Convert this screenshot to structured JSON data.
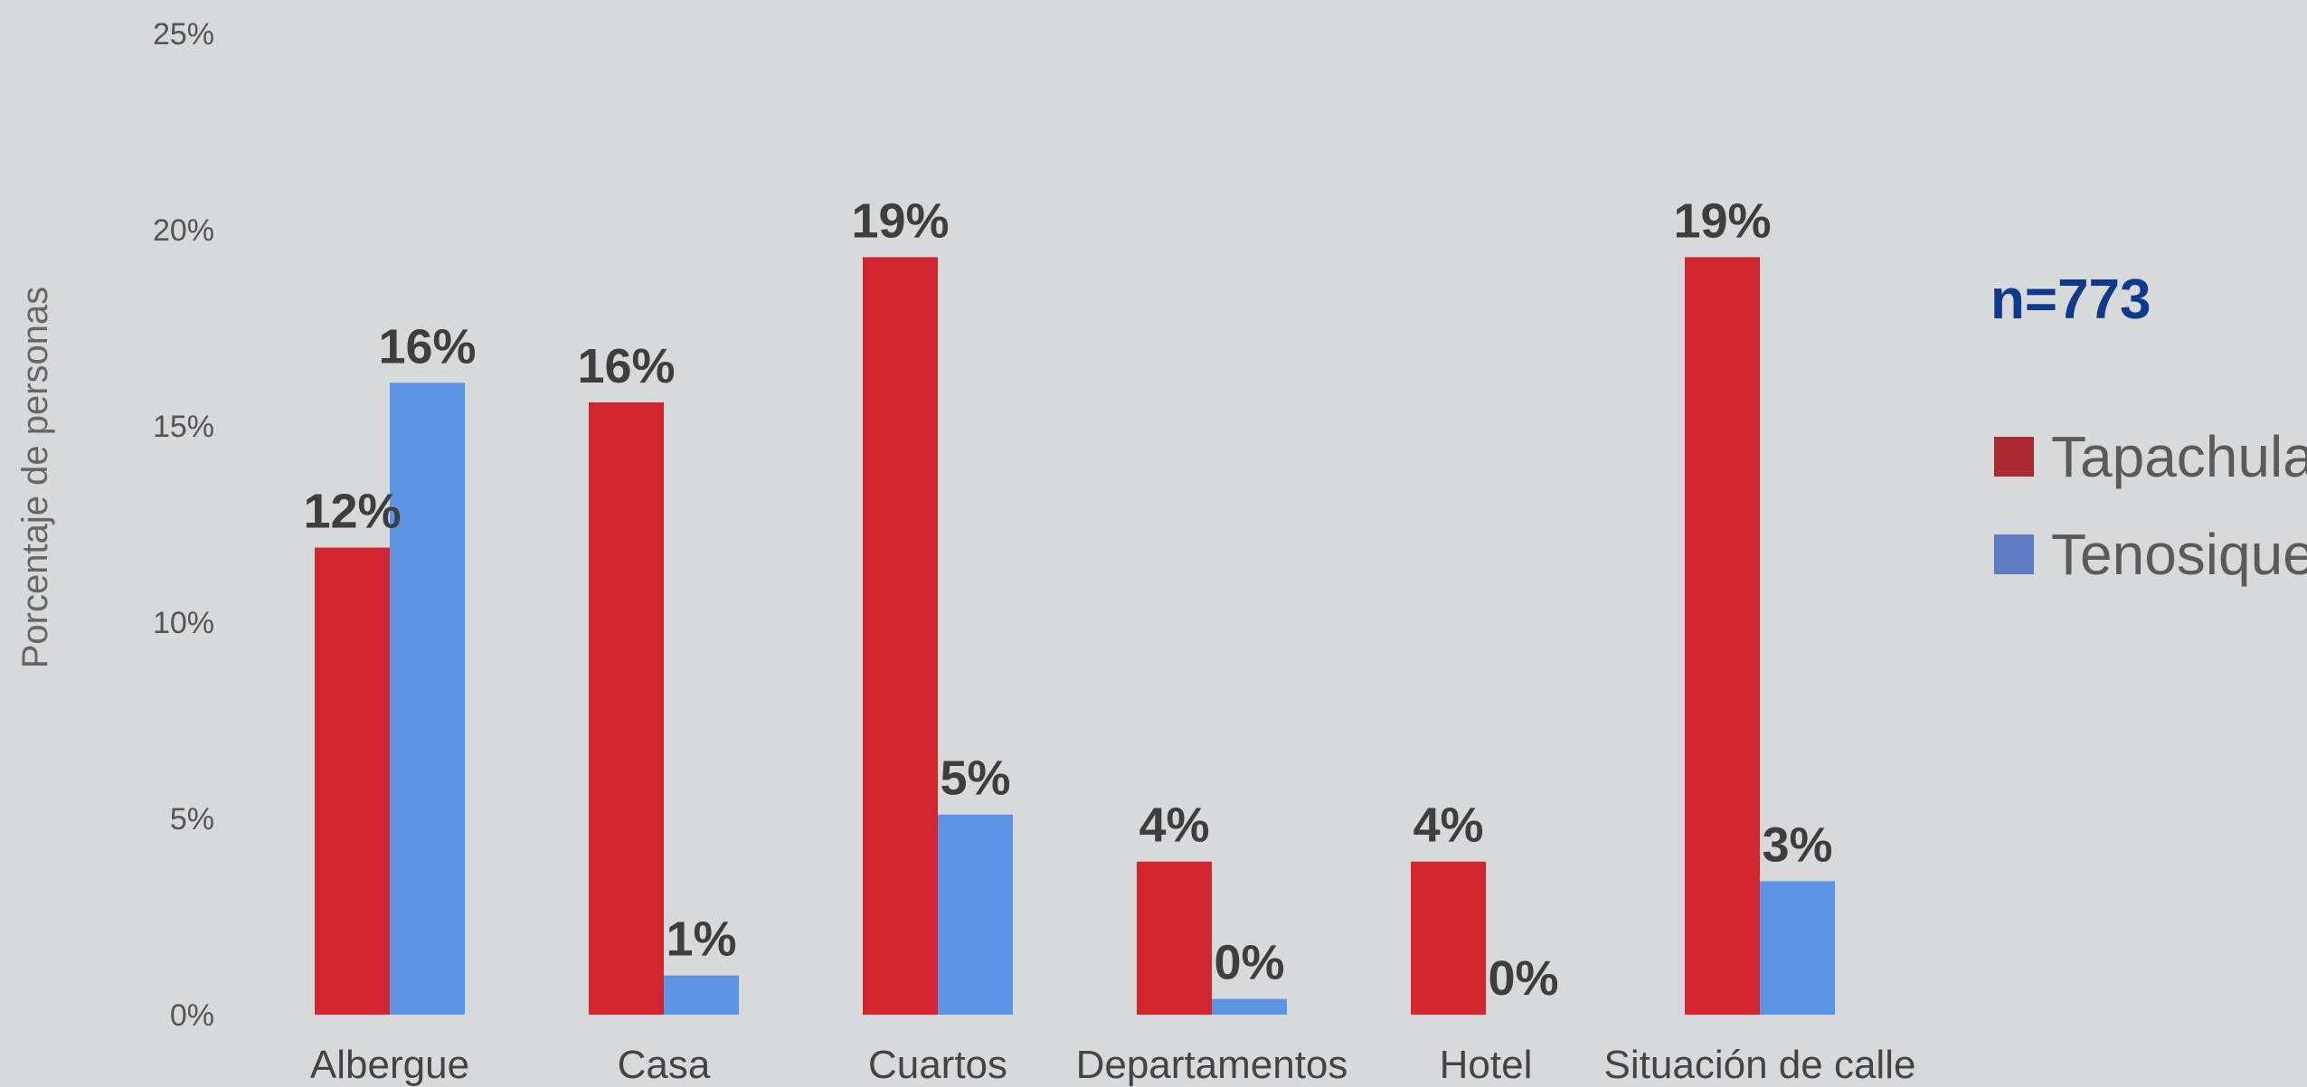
{
  "chart_data": {
    "type": "bar",
    "title": "",
    "xlabel": "",
    "ylabel": "Porcentaje de personas",
    "ylim": [
      0,
      25
    ],
    "ytick_values": [
      0,
      5,
      10,
      15,
      20,
      25
    ],
    "ytick_labels": [
      "0%",
      "5%",
      "10%",
      "15%",
      "20%",
      "25%"
    ],
    "categories": [
      "Albergue",
      "Casa",
      "Cuartos",
      "Departamentos",
      "Hotel",
      "Situación de calle"
    ],
    "series": [
      {
        "name": "Tapachula",
        "color": "#d12630",
        "values": [
          11.9,
          15.6,
          19.3,
          3.9,
          3.9,
          19.3
        ],
        "labels": [
          "12%",
          "16%",
          "19%",
          "4%",
          "4%",
          "19%"
        ]
      },
      {
        "name": "Tenosique",
        "color": "#5c94e3",
        "values": [
          16.1,
          1.0,
          5.1,
          0.4,
          0.0,
          3.4
        ],
        "labels": [
          "16%",
          "1%",
          "5%",
          "0%",
          "0%",
          "3%"
        ]
      }
    ],
    "legend_position": "right",
    "legend_colors": [
      "#ad2a33",
      "#5e7cc4"
    ],
    "grid": false,
    "annotation": "n=773"
  }
}
